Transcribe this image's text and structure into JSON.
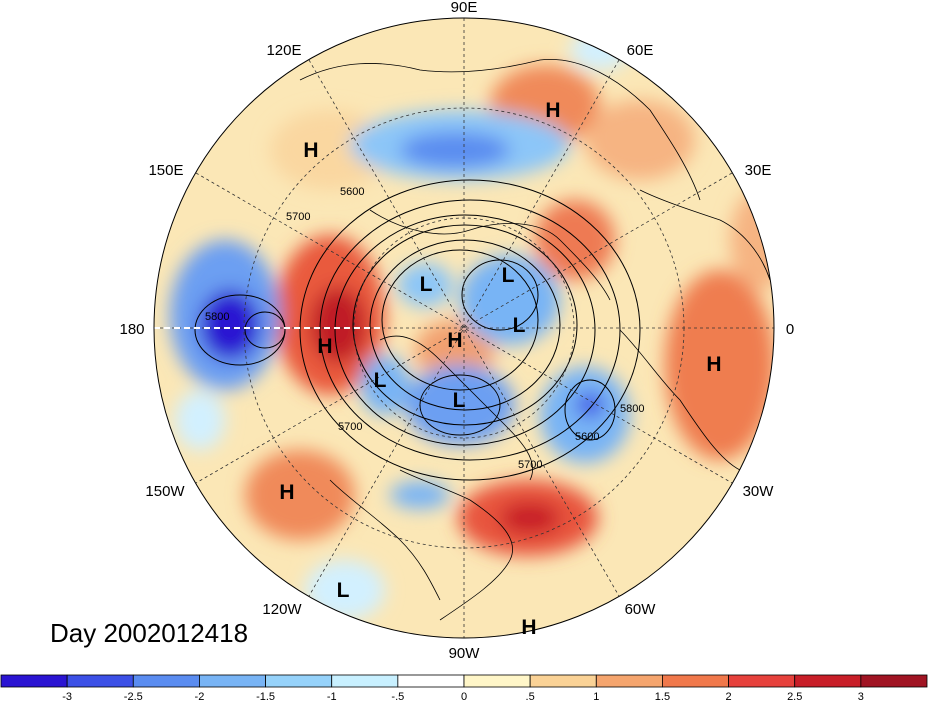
{
  "map": {
    "projection": "north polar stereographic",
    "date_label": "Day 2002012418",
    "longitude_labels": [
      "90E",
      "60E",
      "30E",
      "0",
      "30W",
      "60W",
      "90W",
      "120W",
      "150W",
      "180",
      "150E",
      "120E"
    ],
    "contour_labels": [
      "5600",
      "5700",
      "5800"
    ],
    "pressure_centers": [
      {
        "type": "H",
        "where": "North Pacific / eastern Siberia coast"
      },
      {
        "type": "H",
        "where": "western Russia"
      },
      {
        "type": "H",
        "where": "north of dateline"
      },
      {
        "type": "H",
        "where": "Arctic, near pole"
      },
      {
        "type": "H",
        "where": "Africa"
      },
      {
        "type": "H",
        "where": "eastern Pacific"
      },
      {
        "type": "H",
        "where": "Caribbean / South America"
      },
      {
        "type": "L",
        "where": "Barents / Kara region"
      },
      {
        "type": "L",
        "where": "Scandinavia / Arctic"
      },
      {
        "type": "L",
        "where": "Siberian Arctic"
      },
      {
        "type": "L",
        "where": "Alaska"
      },
      {
        "type": "L",
        "where": "Canada / Hudson Bay"
      },
      {
        "type": "L",
        "where": "tropical eastern Pacific"
      }
    ]
  },
  "colorbar": {
    "tick_labels": [
      "-3",
      "-2.5",
      "-2",
      "-1.5",
      "-1",
      "-.5",
      "0",
      ".5",
      "1",
      "1.5",
      "2",
      "2.5",
      "3"
    ],
    "colors": [
      "#2a14d2",
      "#3c50e6",
      "#5a8cf0",
      "#78b4f5",
      "#96d2fa",
      "#c8f0ff",
      "#ffffff",
      "#fff6c8",
      "#fad296",
      "#f5a56e",
      "#f0784b",
      "#e6413c",
      "#c81e28",
      "#a01423"
    ]
  }
}
